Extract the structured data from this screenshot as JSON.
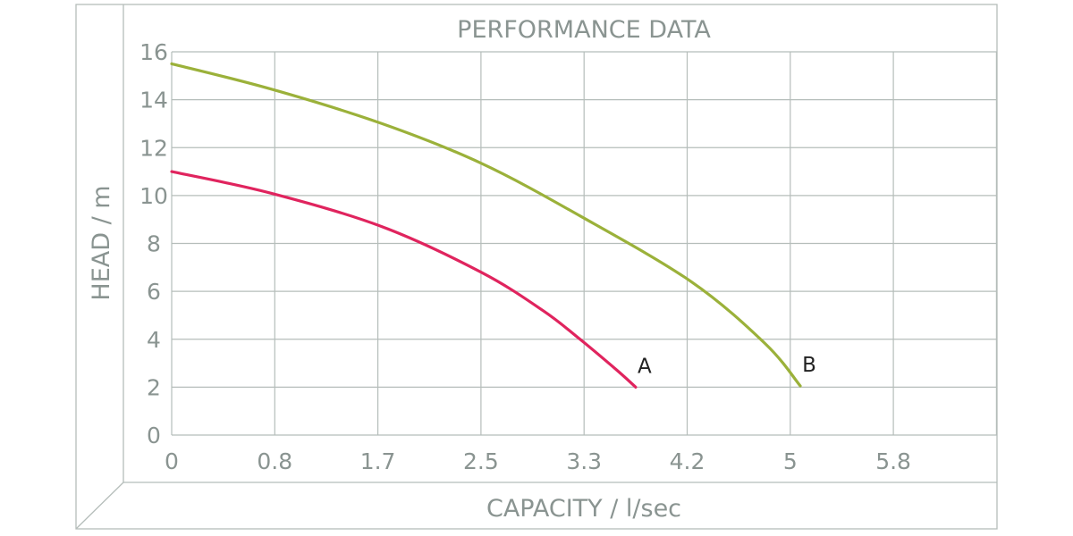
{
  "chart_data": {
    "type": "line",
    "title": "PERFORMANCE DATA",
    "xlabel": "CAPACITY / l/sec",
    "ylabel": "HEAD / m",
    "x_ticks": [
      "0",
      "0.8",
      "1.7",
      "2.5",
      "3.3",
      "4.2",
      "5",
      "5.8"
    ],
    "y_ticks": [
      "0",
      "2",
      "4",
      "6",
      "8",
      "10",
      "12",
      "14",
      "16"
    ],
    "xlim": [
      0,
      6.67
    ],
    "ylim": [
      0,
      16
    ],
    "grid": true,
    "series": [
      {
        "name": "A",
        "color": "#e0245e",
        "points": [
          [
            0,
            11.0
          ],
          [
            0.8,
            10.1
          ],
          [
            1.7,
            8.7
          ],
          [
            2.5,
            6.8
          ],
          [
            3.0,
            5.2
          ],
          [
            3.3,
            4.0
          ],
          [
            3.6,
            2.7
          ],
          [
            3.75,
            2.0
          ]
        ]
      },
      {
        "name": "B",
        "color": "#9bb13a",
        "points": [
          [
            0,
            15.5
          ],
          [
            0.8,
            14.45
          ],
          [
            1.7,
            13.0
          ],
          [
            2.5,
            11.35
          ],
          [
            3.3,
            9.15
          ],
          [
            4.2,
            6.4
          ],
          [
            4.8,
            3.8
          ],
          [
            5.08,
            2.05
          ]
        ]
      }
    ]
  }
}
